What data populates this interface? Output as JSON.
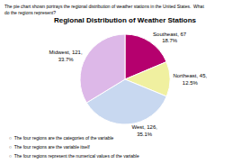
{
  "chart_data": {
    "type": "pie",
    "title": "Regional Distribution of Weather Stations",
    "categories": [
      "Southeast, 67\n18.7%",
      "Northeast, 45,\n12.5%",
      "West, 126,\n35.1%",
      "Midwest, 121,\n33.7%"
    ],
    "values": [
      67,
      45,
      126,
      121
    ],
    "colors": [
      "#b5006e",
      "#f0f0a0",
      "#c8d8f0",
      "#ddb8e8"
    ],
    "data_labels": true,
    "annotations": [
      "The pie chart shown portrays the regional distribution of weather stations in the United States.  What\ndo the regions represent?",
      "○  The four regions are the categories of the variable",
      "○  The four regions are the variable itself",
      "○  The four regions represent the numerical values of the variable"
    ]
  }
}
